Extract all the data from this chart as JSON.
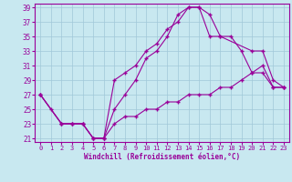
{
  "xlabel": "Windchill (Refroidissement éolien,°C)",
  "xlim": [
    -0.5,
    23.5
  ],
  "ylim": [
    20.5,
    39.5
  ],
  "xticks": [
    0,
    1,
    2,
    3,
    4,
    5,
    6,
    7,
    8,
    9,
    10,
    11,
    12,
    13,
    14,
    15,
    16,
    17,
    18,
    19,
    20,
    21,
    22,
    23
  ],
  "yticks": [
    21,
    23,
    25,
    27,
    29,
    31,
    33,
    35,
    37,
    39
  ],
  "background_color": "#c8e8f0",
  "grid_color": "#a0c8d8",
  "line_color": "#990099",
  "line1_x": [
    0,
    1,
    2,
    3,
    4,
    5,
    6,
    7,
    8,
    9,
    10,
    11,
    12,
    13,
    14,
    15,
    16,
    17,
    18,
    19,
    20,
    21,
    22,
    23
  ],
  "line1_y": [
    27,
    25,
    23,
    23,
    23,
    21,
    21,
    25,
    27,
    29,
    32,
    33,
    35,
    38,
    39,
    39,
    38,
    35,
    35,
    33,
    30,
    30,
    28,
    28
  ],
  "line2_x": [
    0,
    2,
    3,
    4,
    5,
    6,
    7,
    8,
    9,
    10,
    11,
    12,
    13,
    14,
    15,
    16,
    17,
    20,
    21,
    22,
    23
  ],
  "line2_y": [
    27,
    23,
    23,
    23,
    21,
    21,
    29,
    30,
    31,
    33,
    34,
    36,
    37,
    39,
    39,
    35,
    35,
    33,
    33,
    29,
    28
  ],
  "line3_x": [
    0,
    2,
    3,
    4,
    5,
    6,
    7,
    8,
    9,
    10,
    11,
    12,
    13,
    14,
    15,
    16,
    17,
    18,
    19,
    20,
    21,
    22,
    23
  ],
  "line3_y": [
    27,
    23,
    23,
    23,
    21,
    21,
    23,
    24,
    24,
    25,
    25,
    26,
    26,
    27,
    27,
    27,
    28,
    28,
    29,
    30,
    31,
    28,
    28
  ]
}
